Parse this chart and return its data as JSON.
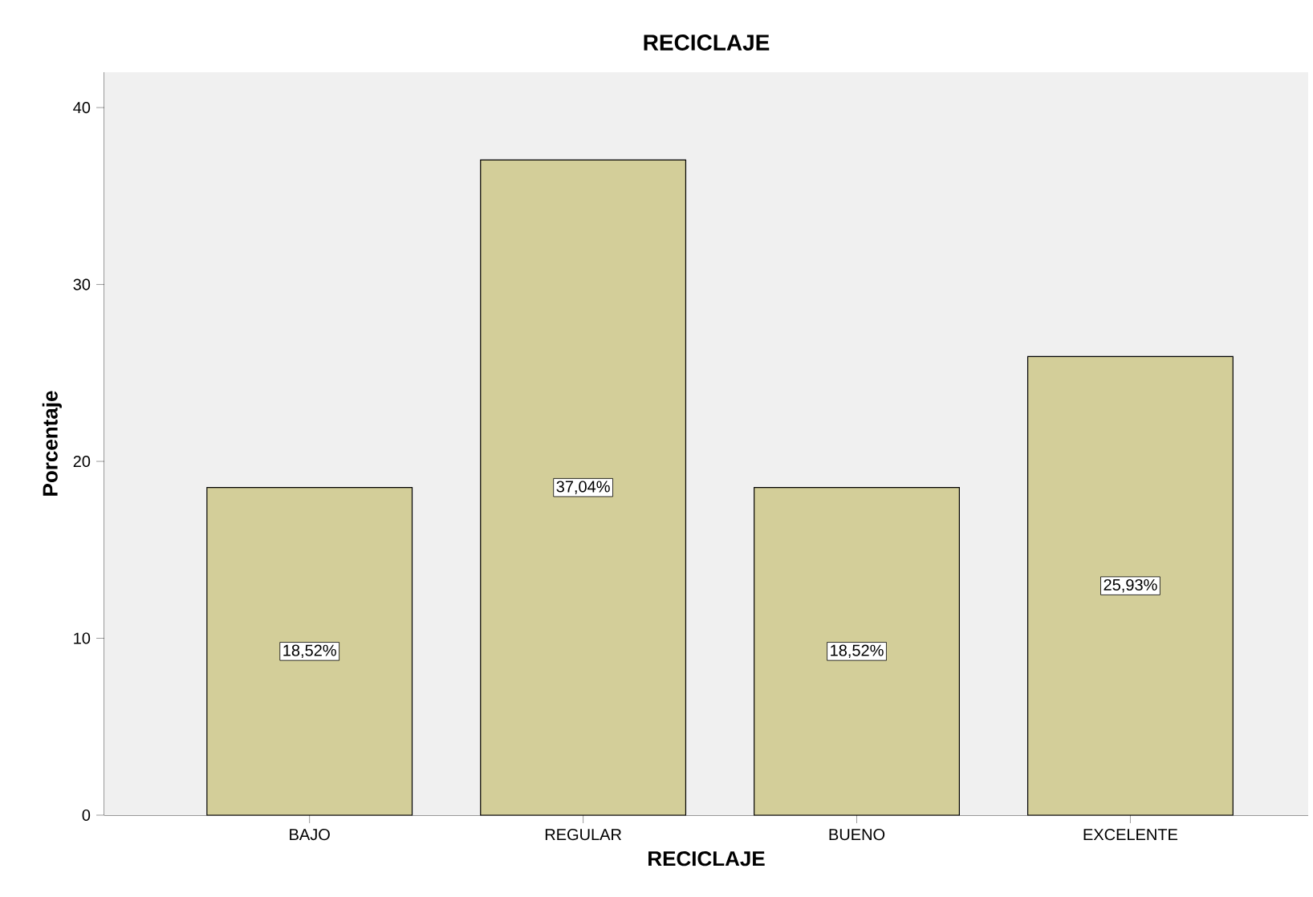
{
  "chart_data": {
    "type": "bar",
    "title": "RECICLAJE",
    "xlabel": "RECICLAJE",
    "ylabel": "Porcentaje",
    "categories": [
      "BAJO",
      "REGULAR",
      "BUENO",
      "EXCELENTE"
    ],
    "values": [
      18.52,
      37.04,
      18.52,
      25.93
    ],
    "value_labels": [
      "18,52%",
      "37,04%",
      "18,52%",
      "25,93%"
    ],
    "color": "#d3ce99",
    "ylim": [
      0,
      42
    ],
    "yticks": [
      0,
      10,
      20,
      30,
      40
    ]
  }
}
